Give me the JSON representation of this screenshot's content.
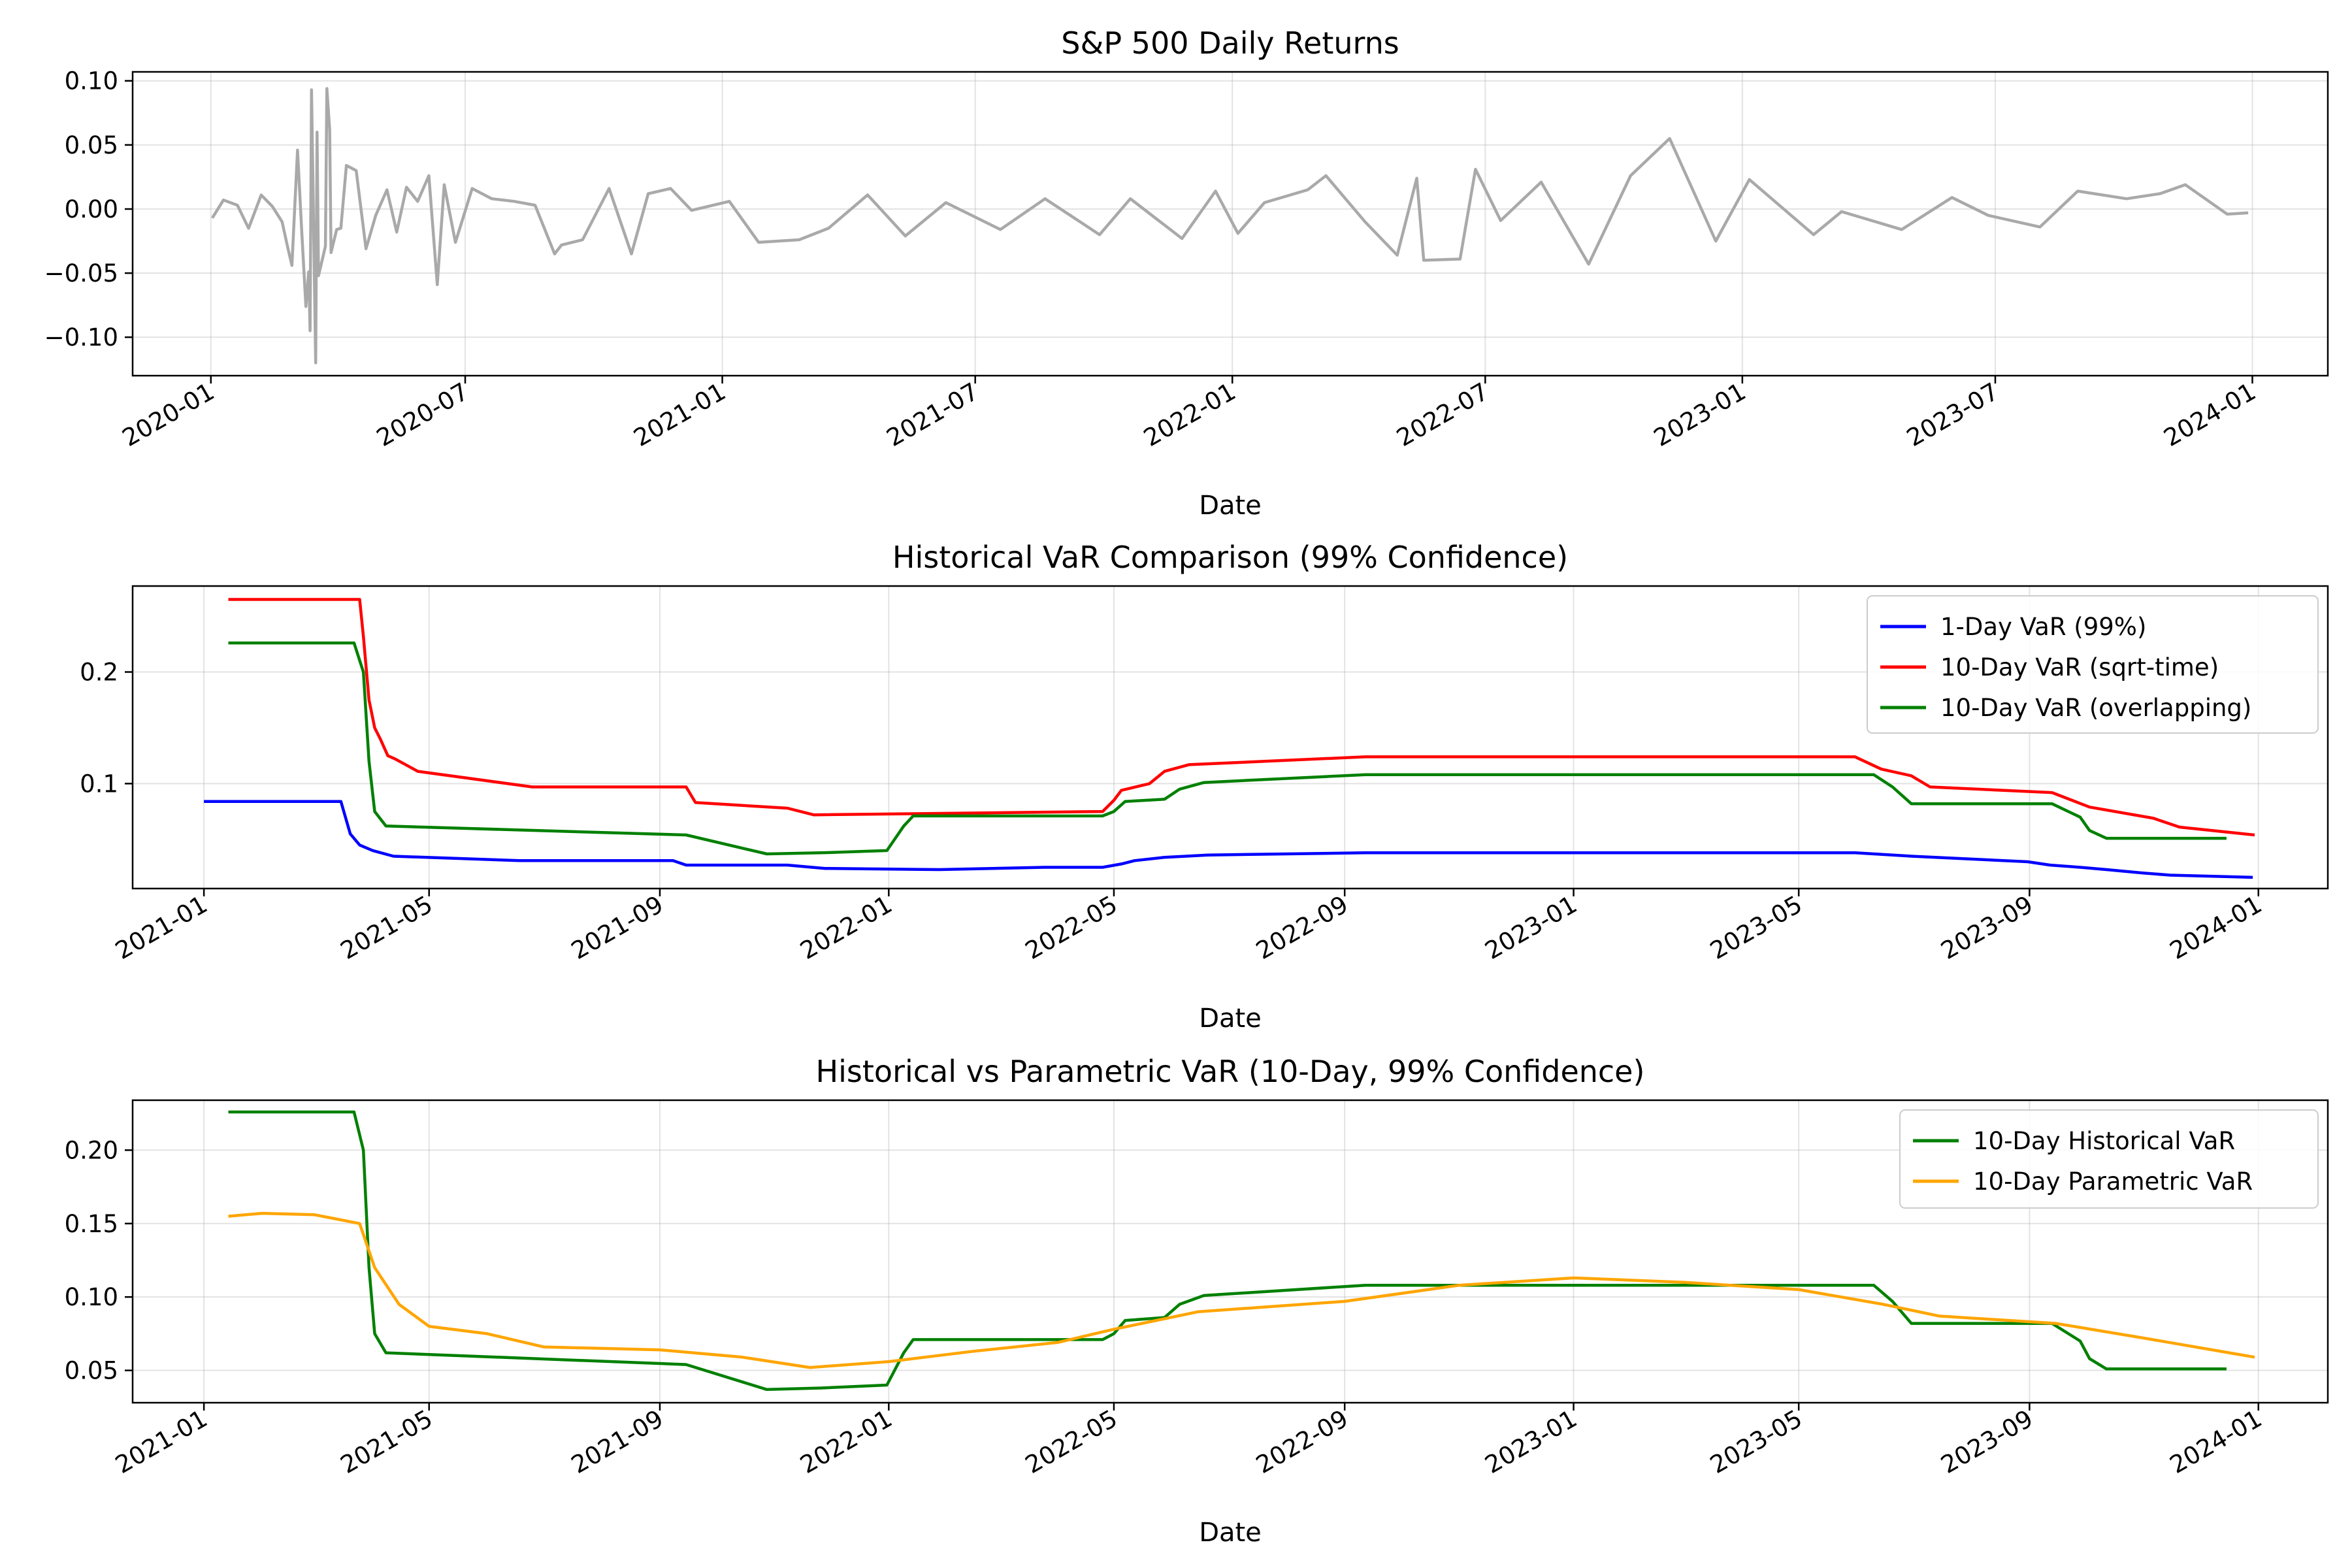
{
  "chart_data": [
    {
      "type": "line",
      "title": "S&P 500 Daily Returns",
      "xlabel": "Date",
      "ylabel": "",
      "xlim": [
        "2019-11-06",
        "2024-02-24"
      ],
      "ylim": [
        -0.13,
        0.107
      ],
      "x_ticks": [
        "2020-01",
        "2020-07",
        "2021-01",
        "2021-07",
        "2022-01",
        "2022-07",
        "2023-01",
        "2023-07",
        "2024-01"
      ],
      "y_ticks": [
        -0.1,
        -0.05,
        0.0,
        0.05,
        0.1
      ],
      "y_tick_labels": [
        "−0.10",
        "−0.05",
        "0.00",
        "0.05",
        "0.10"
      ],
      "grid": true,
      "legend": null,
      "series": [
        {
          "color": "#a9a9a9",
          "x": [
            "2020-01-02",
            "2020-01-10",
            "2020-01-20",
            "2020-01-28",
            "2020-02-06",
            "2020-02-14",
            "2020-02-21",
            "2020-02-25",
            "2020-02-28",
            "2020-03-03",
            "2020-03-06",
            "2020-03-09",
            "2020-03-11",
            "2020-03-12",
            "2020-03-13",
            "2020-03-16",
            "2020-03-17",
            "2020-03-18",
            "2020-03-20",
            "2020-03-23",
            "2020-03-24",
            "2020-03-26",
            "2020-03-27",
            "2020-03-31",
            "2020-04-03",
            "2020-04-07",
            "2020-04-14",
            "2020-04-21",
            "2020-04-28",
            "2020-05-06",
            "2020-05-13",
            "2020-05-20",
            "2020-05-28",
            "2020-06-05",
            "2020-06-11",
            "2020-06-16",
            "2020-06-24",
            "2020-07-06",
            "2020-07-20",
            "2020-08-05",
            "2020-08-20",
            "2020-09-03",
            "2020-09-08",
            "2020-09-23",
            "2020-10-12",
            "2020-10-28",
            "2020-11-09",
            "2020-11-25",
            "2020-12-10",
            "2021-01-06",
            "2021-01-27",
            "2021-02-25",
            "2021-03-18",
            "2021-04-15",
            "2021-05-12",
            "2021-06-10",
            "2021-07-19",
            "2021-08-20",
            "2021-09-28",
            "2021-10-20",
            "2021-11-26",
            "2021-12-20",
            "2022-01-05",
            "2022-01-24",
            "2022-02-24",
            "2022-03-09",
            "2022-04-06",
            "2022-04-29",
            "2022-05-13",
            "2022-05-18",
            "2022-06-13",
            "2022-06-24",
            "2022-07-12",
            "2022-08-10",
            "2022-09-13",
            "2022-10-13",
            "2022-11-10",
            "2022-12-13",
            "2023-01-06",
            "2023-02-21",
            "2023-03-13",
            "2023-04-25",
            "2023-05-31",
            "2023-06-26",
            "2023-08-02",
            "2023-08-29",
            "2023-10-03",
            "2023-10-27",
            "2023-11-14",
            "2023-12-14",
            "2023-12-29"
          ],
          "y": [
            -0.007,
            0.007,
            0.003,
            -0.015,
            0.011,
            0.002,
            -0.01,
            -0.03,
            -0.044,
            0.046,
            -0.017,
            -0.076,
            -0.049,
            -0.095,
            0.093,
            -0.12,
            0.06,
            -0.052,
            -0.043,
            -0.029,
            0.094,
            0.062,
            -0.034,
            -0.016,
            -0.015,
            0.034,
            0.03,
            -0.031,
            -0.005,
            0.015,
            -0.018,
            0.017,
            0.006,
            0.026,
            -0.059,
            0.019,
            -0.026,
            0.016,
            0.008,
            0.006,
            0.003,
            -0.035,
            -0.028,
            -0.024,
            0.016,
            -0.035,
            0.012,
            0.016,
            -0.001,
            0.006,
            -0.026,
            -0.024,
            -0.015,
            0.011,
            -0.021,
            0.005,
            -0.016,
            0.008,
            -0.02,
            0.008,
            -0.023,
            0.014,
            -0.019,
            0.005,
            0.015,
            0.026,
            -0.01,
            -0.036,
            0.024,
            -0.04,
            -0.039,
            0.031,
            -0.009,
            0.021,
            -0.043,
            0.026,
            0.055,
            -0.025,
            0.023,
            -0.02,
            -0.002,
            -0.016,
            0.009,
            -0.005,
            -0.014,
            0.014,
            0.008,
            0.012,
            0.019,
            -0.004,
            -0.003
          ]
        }
      ]
    },
    {
      "type": "line",
      "title": "Historical VaR Comparison (99% Confidence)",
      "xlabel": "Date",
      "ylabel": "",
      "xlim": [
        "2020-11-24",
        "2024-02-07"
      ],
      "ylim": [
        0.006,
        0.277
      ],
      "x_ticks": [
        "2021-01",
        "2021-05",
        "2021-09",
        "2022-01",
        "2022-05",
        "2022-09",
        "2023-01",
        "2023-05",
        "2023-09",
        "2024-01"
      ],
      "y_ticks": [
        0.1,
        0.2
      ],
      "y_tick_labels": [
        "0.1",
        "0.2"
      ],
      "grid": true,
      "legend": "top-right",
      "series": [
        {
          "name": "1-Day VaR (99%)",
          "color": "#0000ff",
          "x": [
            "2021-01-01",
            "2021-03-15",
            "2021-03-20",
            "2021-03-25",
            "2021-04-01",
            "2021-04-12",
            "2021-06-18",
            "2021-09-08",
            "2021-09-15",
            "2021-11-08",
            "2021-11-28",
            "2022-01-28",
            "2022-03-25",
            "2022-04-25",
            "2022-05-05",
            "2022-05-12",
            "2022-05-28",
            "2022-06-20",
            "2022-09-12",
            "2023-05-31",
            "2023-06-30",
            "2023-08-31",
            "2023-09-12",
            "2023-09-28",
            "2023-10-12",
            "2023-10-31",
            "2023-11-15",
            "2023-12-29"
          ],
          "y": [
            0.084,
            0.084,
            0.055,
            0.045,
            0.04,
            0.035,
            0.031,
            0.031,
            0.027,
            0.027,
            0.024,
            0.023,
            0.025,
            0.025,
            0.028,
            0.031,
            0.034,
            0.036,
            0.038,
            0.038,
            0.035,
            0.03,
            0.027,
            0.025,
            0.023,
            0.02,
            0.018,
            0.016
          ]
        },
        {
          "name": "10-Day VaR (sqrt-time)",
          "color": "#ff0000",
          "x": [
            "2021-01-14",
            "2021-03-25",
            "2021-03-27",
            "2021-03-30",
            "2021-04-02",
            "2021-04-05",
            "2021-04-09",
            "2021-04-13",
            "2021-04-25",
            "2021-06-25",
            "2021-09-15",
            "2021-09-20",
            "2021-11-08",
            "2021-11-22",
            "2022-04-25",
            "2022-05-01",
            "2022-05-05",
            "2022-05-20",
            "2022-05-28",
            "2022-06-10",
            "2022-09-12",
            "2023-05-31",
            "2023-06-14",
            "2023-06-30",
            "2023-07-10",
            "2023-09-13",
            "2023-10-03",
            "2023-11-06",
            "2023-11-20",
            "2023-12-30"
          ],
          "y": [
            0.265,
            0.265,
            0.232,
            0.175,
            0.15,
            0.14,
            0.125,
            0.122,
            0.111,
            0.097,
            0.097,
            0.083,
            0.078,
            0.072,
            0.075,
            0.085,
            0.094,
            0.1,
            0.111,
            0.117,
            0.124,
            0.124,
            0.113,
            0.107,
            0.097,
            0.092,
            0.079,
            0.069,
            0.061,
            0.054
          ]
        },
        {
          "name": "10-Day VaR (overlapping)",
          "color": "#008000",
          "x": [
            "2021-01-14",
            "2021-03-22",
            "2021-03-27",
            "2021-03-30",
            "2021-04-02",
            "2021-04-08",
            "2021-09-15",
            "2021-10-28",
            "2021-11-26",
            "2021-12-31",
            "2022-01-09",
            "2022-01-14",
            "2022-04-25",
            "2022-05-01",
            "2022-05-07",
            "2022-05-28",
            "2022-06-05",
            "2022-06-18",
            "2022-09-12",
            "2023-06-10",
            "2023-06-20",
            "2023-06-30",
            "2023-09-13",
            "2023-09-28",
            "2023-10-03",
            "2023-10-12",
            "2023-12-15"
          ],
          "y": [
            0.226,
            0.226,
            0.2,
            0.12,
            0.075,
            0.062,
            0.054,
            0.037,
            0.038,
            0.04,
            0.062,
            0.071,
            0.071,
            0.075,
            0.084,
            0.086,
            0.095,
            0.101,
            0.108,
            0.108,
            0.097,
            0.082,
            0.082,
            0.07,
            0.058,
            0.051,
            0.051
          ]
        }
      ]
    },
    {
      "type": "line",
      "title": "Historical vs Parametric VaR (10-Day, 99% Confidence)",
      "xlabel": "Date",
      "ylabel": "",
      "xlim": [
        "2020-11-24",
        "2024-02-07"
      ],
      "ylim": [
        0.028,
        0.234
      ],
      "x_ticks": [
        "2021-01",
        "2021-05",
        "2021-09",
        "2022-01",
        "2022-05",
        "2022-09",
        "2023-01",
        "2023-05",
        "2023-09",
        "2024-01"
      ],
      "y_ticks": [
        0.05,
        0.1,
        0.15,
        0.2
      ],
      "y_tick_labels": [
        "0.05",
        "0.10",
        "0.15",
        "0.20"
      ],
      "grid": true,
      "legend": "top-right",
      "series": [
        {
          "name": "10-Day Historical VaR",
          "color": "#008000",
          "x": [
            "2021-01-14",
            "2021-03-22",
            "2021-03-27",
            "2021-03-30",
            "2021-04-02",
            "2021-04-08",
            "2021-09-15",
            "2021-10-28",
            "2021-11-26",
            "2021-12-31",
            "2022-01-09",
            "2022-01-14",
            "2022-04-25",
            "2022-05-01",
            "2022-05-07",
            "2022-05-28",
            "2022-06-05",
            "2022-06-18",
            "2022-09-12",
            "2023-06-10",
            "2023-06-20",
            "2023-06-30",
            "2023-09-13",
            "2023-09-28",
            "2023-10-03",
            "2023-10-12",
            "2023-12-15"
          ],
          "y": [
            0.226,
            0.226,
            0.2,
            0.12,
            0.075,
            0.062,
            0.054,
            0.037,
            0.038,
            0.04,
            0.062,
            0.071,
            0.071,
            0.075,
            0.084,
            0.086,
            0.095,
            0.101,
            0.108,
            0.108,
            0.097,
            0.082,
            0.082,
            0.07,
            0.058,
            0.051,
            0.051
          ]
        },
        {
          "name": "10-Day Parametric VaR",
          "color": "#ffa500",
          "x": [
            "2021-01-14",
            "2021-02-01",
            "2021-03-01",
            "2021-03-25",
            "2021-04-02",
            "2021-04-15",
            "2021-05-01",
            "2021-06-01",
            "2021-07-01",
            "2021-09-01",
            "2021-10-15",
            "2021-11-20",
            "2022-01-01",
            "2022-02-15",
            "2022-04-01",
            "2022-05-01",
            "2022-06-15",
            "2022-09-01",
            "2022-11-01",
            "2023-01-01",
            "2023-03-01",
            "2023-05-01",
            "2023-06-15",
            "2023-07-15",
            "2023-09-15",
            "2023-11-01",
            "2023-12-30"
          ],
          "y": [
            0.155,
            0.157,
            0.156,
            0.15,
            0.12,
            0.095,
            0.08,
            0.075,
            0.066,
            0.064,
            0.059,
            0.052,
            0.056,
            0.063,
            0.069,
            0.078,
            0.09,
            0.097,
            0.108,
            0.113,
            0.11,
            0.105,
            0.095,
            0.087,
            0.082,
            0.072,
            0.059
          ]
        }
      ]
    }
  ]
}
